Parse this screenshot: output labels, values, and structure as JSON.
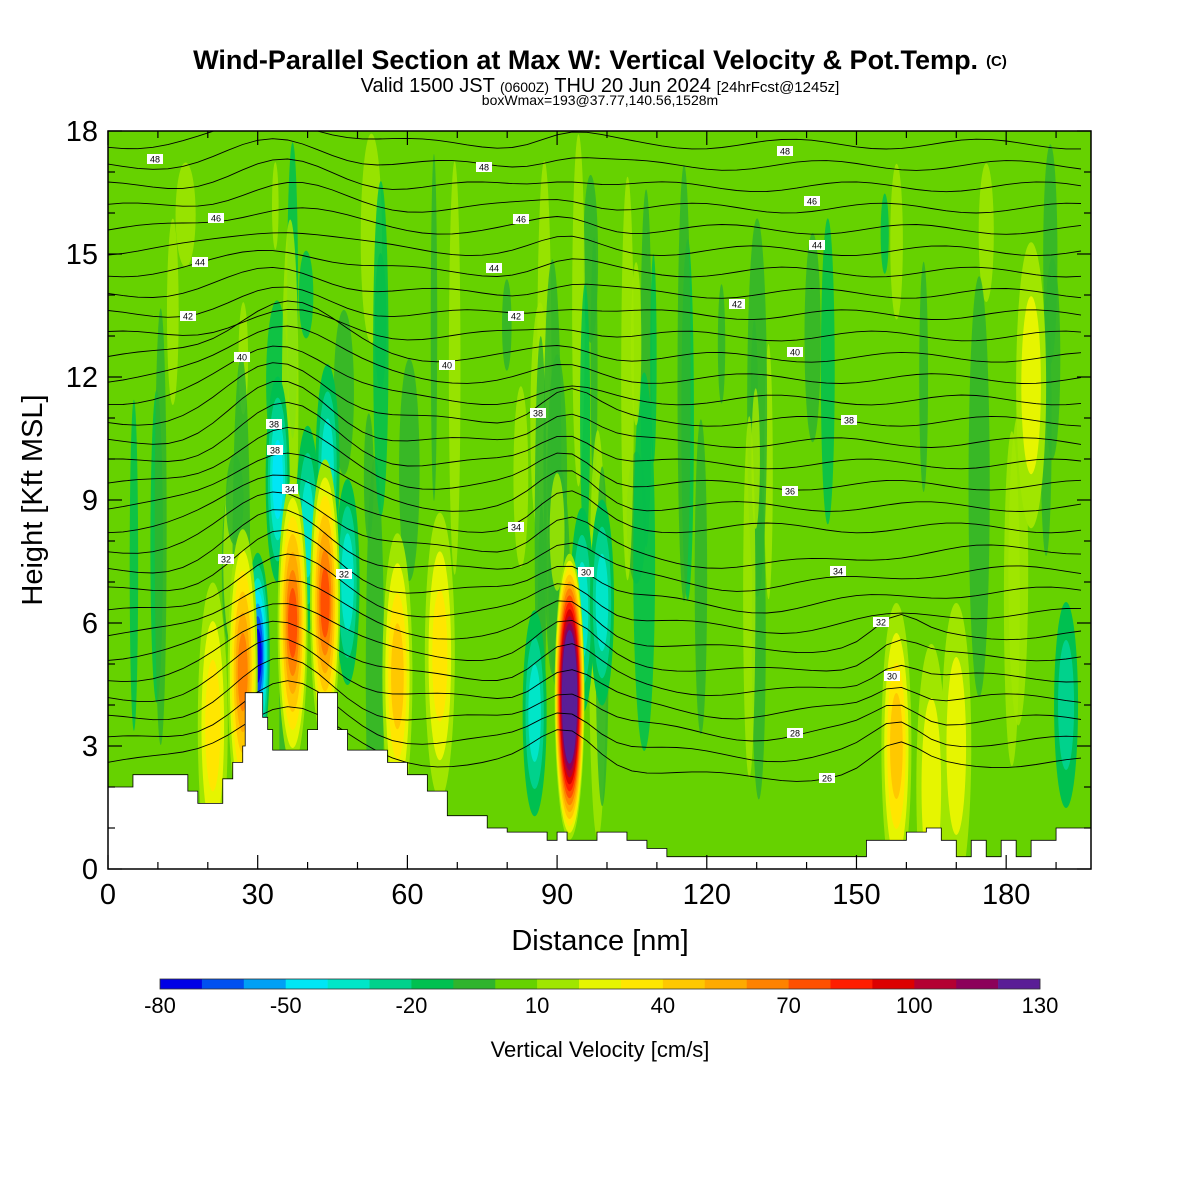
{
  "chart_data": {
    "type": "heatmap",
    "title": {
      "main": "Wind-Parallel Section at Max W: Vertical Velocity & Pot.Temp.",
      "copyright": "(C)",
      "valid_pre": "Valid 1500 JST",
      "valid_utc": "(0600Z)",
      "valid_post": "THU 20 Jun 2024",
      "forecast": "[24hrFcst@1245z]",
      "box_info": "boxWmax=193@37.77,140.56,1528m"
    },
    "xlabel": "Distance [nm]",
    "ylabel": "Height [Kft MSL]",
    "xlim": [
      0,
      197
    ],
    "ylim": [
      0,
      18
    ],
    "xticks": [
      "0",
      "30",
      "60",
      "90",
      "120",
      "150",
      "180"
    ],
    "yticks": [
      "0",
      "3",
      "6",
      "9",
      "12",
      "15",
      "18"
    ],
    "colorbar": {
      "label": "Vertical Velocity [cm/s]",
      "levels": [
        -80,
        -70,
        -60,
        -50,
        -40,
        -30,
        -20,
        -10,
        0,
        10,
        20,
        30,
        40,
        50,
        60,
        70,
        80,
        90,
        100,
        110,
        120,
        130
      ],
      "colors": [
        "#0000e6",
        "#0050f0",
        "#00a0f5",
        "#00e6f5",
        "#00e6c8",
        "#00d28c",
        "#00c050",
        "#30b42d",
        "#66d200",
        "#a0e600",
        "#e6f500",
        "#ffe600",
        "#ffc800",
        "#ffaa00",
        "#ff8200",
        "#ff5000",
        "#ff1e00",
        "#dc0000",
        "#b40032",
        "#8c005a",
        "#5a1e96"
      ],
      "tick_labels": [
        "-80",
        "-50",
        "-20",
        "10",
        "40",
        "70",
        "100",
        "130"
      ]
    },
    "terrain_kft": [
      [
        0,
        2.0
      ],
      [
        5,
        2.3
      ],
      [
        12,
        2.3
      ],
      [
        16,
        1.9
      ],
      [
        18,
        1.6
      ],
      [
        21,
        1.6
      ],
      [
        23,
        2.2
      ],
      [
        25,
        2.6
      ],
      [
        27,
        3.0
      ],
      [
        27.5,
        4.3
      ],
      [
        30,
        4.3
      ],
      [
        31,
        3.7
      ],
      [
        32,
        3.4
      ],
      [
        33,
        2.9
      ],
      [
        38,
        2.9
      ],
      [
        40,
        3.4
      ],
      [
        42,
        4.3
      ],
      [
        45,
        4.3
      ],
      [
        46,
        3.4
      ],
      [
        48,
        2.9
      ],
      [
        52,
        2.9
      ],
      [
        56,
        2.6
      ],
      [
        60,
        2.3
      ],
      [
        64,
        1.9
      ],
      [
        68,
        1.3
      ],
      [
        72,
        1.3
      ],
      [
        76,
        1.0
      ],
      [
        80,
        0.9
      ],
      [
        85,
        0.9
      ],
      [
        88,
        0.7
      ],
      [
        90,
        0.9
      ],
      [
        92,
        0.7
      ],
      [
        95,
        0.7
      ],
      [
        98,
        0.9
      ],
      [
        104,
        0.7
      ],
      [
        108,
        0.5
      ],
      [
        112,
        0.3
      ],
      [
        120,
        0.3
      ],
      [
        140,
        0.3
      ],
      [
        150,
        0.3
      ],
      [
        152,
        0.7
      ],
      [
        156,
        0.7
      ],
      [
        160,
        0.9
      ],
      [
        164,
        1.0
      ],
      [
        167,
        0.7
      ],
      [
        170,
        0.3
      ],
      [
        173,
        0.7
      ],
      [
        176,
        0.3
      ],
      [
        179,
        0.7
      ],
      [
        182,
        0.3
      ],
      [
        185,
        0.7
      ],
      [
        188,
        0.7
      ],
      [
        190,
        1.0
      ],
      [
        197,
        1.0
      ]
    ],
    "updraft_cells": [
      {
        "x": 92.5,
        "z": 4.2,
        "peak_cm_s": 193
      },
      {
        "x": 37,
        "z": 6.0,
        "peak_cm_s": 70
      },
      {
        "x": 27,
        "z": 4.8,
        "peak_cm_s": 65
      },
      {
        "x": 43.5,
        "z": 6.5,
        "peak_cm_s": 70
      },
      {
        "x": 58,
        "z": 4.7,
        "peak_cm_s": 45
      },
      {
        "x": 66.5,
        "z": 5.2,
        "peak_cm_s": 30
      },
      {
        "x": 21,
        "z": 3.5,
        "peak_cm_s": 35
      },
      {
        "x": 158,
        "z": 3.0,
        "peak_cm_s": 45
      },
      {
        "x": 165,
        "z": 2.0,
        "peak_cm_s": 25
      },
      {
        "x": 170,
        "z": 3.0,
        "peak_cm_s": 25
      },
      {
        "x": 185,
        "z": 11.8,
        "peak_cm_s": 20
      }
    ],
    "downdraft_cells": [
      {
        "x": 30,
        "z": 5.2,
        "peak_cm_s": -78
      },
      {
        "x": 34,
        "z": 9.5,
        "peak_cm_s": -45
      },
      {
        "x": 40,
        "z": 8.3,
        "peak_cm_s": -38
      },
      {
        "x": 44,
        "z": 9.8,
        "peak_cm_s": -32
      },
      {
        "x": 48,
        "z": 7.0,
        "peak_cm_s": -32
      },
      {
        "x": 85.5,
        "z": 3.8,
        "peak_cm_s": -35
      },
      {
        "x": 95,
        "z": 6.3,
        "peak_cm_s": -38
      },
      {
        "x": 99,
        "z": 6.5,
        "peak_cm_s": -30
      },
      {
        "x": 192,
        "z": 4.0,
        "peak_cm_s": -25
      }
    ],
    "theta_label_values": [
      "48",
      "48",
      "48",
      "46",
      "46",
      "46",
      "44",
      "44",
      "44",
      "42",
      "42",
      "42",
      "40",
      "40",
      "40",
      "38",
      "38",
      "38",
      "38",
      "36",
      "34",
      "34",
      "34",
      "32",
      "32",
      "32",
      "30",
      "30",
      "28",
      "26"
    ]
  }
}
